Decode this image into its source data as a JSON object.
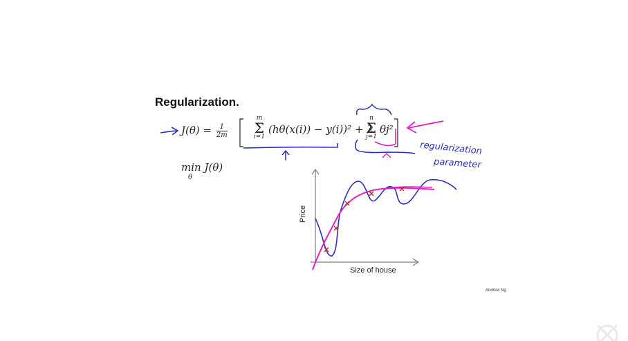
{
  "slide": {
    "title": "Regularization.",
    "credit": "Andrew Ng"
  },
  "equation": {
    "lhs": "J(θ) =",
    "frac_num": "1",
    "frac_den": "2m",
    "sum1_top": "m",
    "sum1_bottom": "i=1",
    "term": "(hθ(x(i)) − y(i))² + λ",
    "sum2_top": "n",
    "sum2_bottom": "j=1",
    "term2": "θj²",
    "min_expr": "min J(θ)",
    "min_sub": "θ"
  },
  "annotations": {
    "handwriting_line1": "regularization",
    "handwriting_line2": "parameter"
  },
  "graph": {
    "xlabel": "Size of house",
    "ylabel": "Price"
  },
  "colors": {
    "pen_blue": "#2b2dbf",
    "pen_magenta": "#e020c8",
    "marker_red": "#c0201e"
  }
}
